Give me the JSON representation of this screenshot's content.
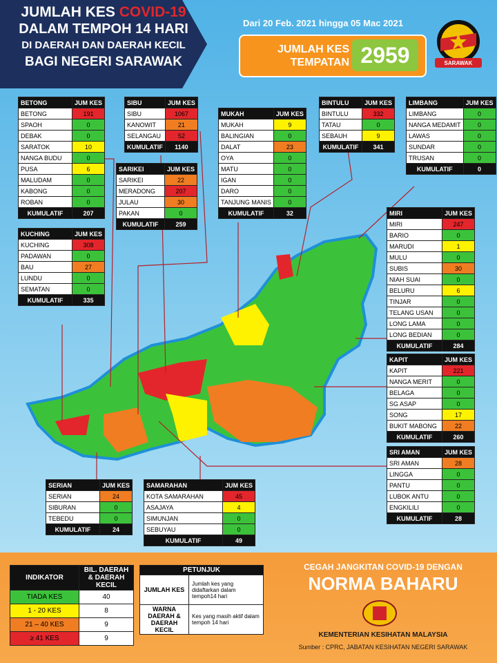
{
  "header": {
    "title_1a": "JUMLAH KES",
    "title_1b": "COVID-19",
    "title_2": "DALAM TEMPOH 14 HARI",
    "title_3": "DI DAERAH DAN DAERAH KECIL",
    "title_4": "BAGI NEGERI SARAWAK",
    "date_range": "Dari 20 Feb. 2021 hingga 05 Mac 2021",
    "total_label": "JUMLAH KES TEMPATAN",
    "total": 2959,
    "badge": "SARAWAK"
  },
  "districts": [
    {
      "name": "BETONG",
      "header": "JUM KES",
      "rows": [
        {
          "name": "BETONG",
          "cases": 191,
          "color": "#e3262b"
        },
        {
          "name": "SPAOH",
          "cases": 0,
          "color": "#3cc23a"
        },
        {
          "name": "DEBAK",
          "cases": 0,
          "color": "#3cc23a"
        },
        {
          "name": "SARATOK",
          "cases": 10,
          "color": "#fff200"
        },
        {
          "name": "NANGA BUDU",
          "cases": 0,
          "color": "#3cc23a"
        },
        {
          "name": "PUSA",
          "cases": 6,
          "color": "#fff200"
        },
        {
          "name": "MALUDAM",
          "cases": 0,
          "color": "#3cc23a"
        },
        {
          "name": "KABONG",
          "cases": 0,
          "color": "#3cc23a"
        },
        {
          "name": "ROBAN",
          "cases": 0,
          "color": "#3cc23a"
        }
      ],
      "total_label": "KUMULATIF",
      "total": 207
    },
    {
      "name": "SIBU",
      "header": "JUM KES",
      "rows": [
        {
          "name": "SIBU",
          "cases": 1067,
          "color": "#e3262b"
        },
        {
          "name": "KANOWIT",
          "cases": 21,
          "color": "#f07d22"
        },
        {
          "name": "SELANGAU",
          "cases": 52,
          "color": "#e3262b"
        }
      ],
      "total_label": "KUMULATIF",
      "total": 1140
    },
    {
      "name": "SARIKEI",
      "header": "JUM KES",
      "rows": [
        {
          "name": "SARIKEI",
          "cases": 22,
          "color": "#f07d22"
        },
        {
          "name": "MERADONG",
          "cases": 207,
          "color": "#e3262b"
        },
        {
          "name": "JULAU",
          "cases": 30,
          "color": "#f07d22"
        },
        {
          "name": "PAKAN",
          "cases": 0,
          "color": "#3cc23a"
        }
      ],
      "total_label": "KUMULATIF",
      "total": 259
    },
    {
      "name": "MUKAH",
      "header": "JUM KES",
      "rows": [
        {
          "name": "MUKAH",
          "cases": 9,
          "color": "#fff200"
        },
        {
          "name": "BALINGIAN",
          "cases": 0,
          "color": "#3cc23a"
        },
        {
          "name": "DALAT",
          "cases": 23,
          "color": "#f07d22"
        },
        {
          "name": "OYA",
          "cases": 0,
          "color": "#3cc23a"
        },
        {
          "name": "MATU",
          "cases": 0,
          "color": "#3cc23a"
        },
        {
          "name": "IGAN",
          "cases": 0,
          "color": "#3cc23a"
        },
        {
          "name": "DARO",
          "cases": 0,
          "color": "#3cc23a"
        },
        {
          "name": "TANJUNG MANIS",
          "cases": 0,
          "color": "#3cc23a"
        }
      ],
      "total_label": "KUMULATIF",
      "total": 32
    },
    {
      "name": "BINTULU",
      "header": "JUM KES",
      "rows": [
        {
          "name": "BINTULU",
          "cases": 332,
          "color": "#e3262b"
        },
        {
          "name": "TATAU",
          "cases": 0,
          "color": "#3cc23a"
        },
        {
          "name": "SEBAUH",
          "cases": 9,
          "color": "#fff200"
        }
      ],
      "total_label": "KUMULATIF",
      "total": 341
    },
    {
      "name": "LIMBANG",
      "header": "JUM KES",
      "rows": [
        {
          "name": "LIMBANG",
          "cases": 0,
          "color": "#3cc23a"
        },
        {
          "name": "NANGA MEDAMIT",
          "cases": 0,
          "color": "#3cc23a"
        },
        {
          "name": "LAWAS",
          "cases": 0,
          "color": "#3cc23a"
        },
        {
          "name": "SUNDAR",
          "cases": 0,
          "color": "#3cc23a"
        },
        {
          "name": "TRUSAN",
          "cases": 0,
          "color": "#3cc23a"
        }
      ],
      "total_label": "KUMULATIF",
      "total": 0
    },
    {
      "name": "KUCHING",
      "header": "JUM KES",
      "rows": [
        {
          "name": "KUCHING",
          "cases": 308,
          "color": "#e3262b"
        },
        {
          "name": "PADAWAN",
          "cases": 0,
          "color": "#3cc23a"
        },
        {
          "name": "BAU",
          "cases": 27,
          "color": "#f07d22"
        },
        {
          "name": "LUNDU",
          "cases": 0,
          "color": "#3cc23a"
        },
        {
          "name": "SEMATAN",
          "cases": 0,
          "color": "#3cc23a"
        }
      ],
      "total_label": "KUMULATIF",
      "total": 335
    },
    {
      "name": "MIRI",
      "header": "JUM KES",
      "rows": [
        {
          "name": "MIRI",
          "cases": 247,
          "color": "#e3262b"
        },
        {
          "name": "BARIO",
          "cases": 0,
          "color": "#3cc23a"
        },
        {
          "name": "MARUDI",
          "cases": 1,
          "color": "#fff200"
        },
        {
          "name": "MULU",
          "cases": 0,
          "color": "#3cc23a"
        },
        {
          "name": "SUBIS",
          "cases": 30,
          "color": "#f07d22"
        },
        {
          "name": "NIAH SUAI",
          "cases": 0,
          "color": "#3cc23a"
        },
        {
          "name": "BELURU",
          "cases": 6,
          "color": "#fff200"
        },
        {
          "name": "TINJAR",
          "cases": 0,
          "color": "#3cc23a"
        },
        {
          "name": "TELANG USAN",
          "cases": 0,
          "color": "#3cc23a"
        },
        {
          "name": "LONG LAMA",
          "cases": 0,
          "color": "#3cc23a"
        },
        {
          "name": "LONG BEDIAN",
          "cases": 0,
          "color": "#3cc23a"
        }
      ],
      "total_label": "KUMULATIF",
      "total": 284
    },
    {
      "name": "KAPIT",
      "header": "JUM KES",
      "rows": [
        {
          "name": "KAPIT",
          "cases": 221,
          "color": "#e3262b"
        },
        {
          "name": "NANGA MERIT",
          "cases": 0,
          "color": "#3cc23a"
        },
        {
          "name": "BELAGA",
          "cases": 0,
          "color": "#3cc23a"
        },
        {
          "name": "SG ASAP",
          "cases": 0,
          "color": "#3cc23a"
        },
        {
          "name": "SONG",
          "cases": 17,
          "color": "#fff200"
        },
        {
          "name": "BUKIT MABONG",
          "cases": 22,
          "color": "#f07d22"
        }
      ],
      "total_label": "KUMULATIF",
      "total": 260
    },
    {
      "name": "SRI AMAN",
      "header": "JUM KES",
      "rows": [
        {
          "name": "SRI AMAN",
          "cases": 28,
          "color": "#f07d22"
        },
        {
          "name": "LINGGA",
          "cases": 0,
          "color": "#3cc23a"
        },
        {
          "name": "PANTU",
          "cases": 0,
          "color": "#3cc23a"
        },
        {
          "name": "LUBOK ANTU",
          "cases": 0,
          "color": "#3cc23a"
        },
        {
          "name": "ENGKILILI",
          "cases": 0,
          "color": "#3cc23a"
        }
      ],
      "total_label": "KUMULATIF",
      "total": 28
    },
    {
      "name": "SERIAN",
      "header": "JUM KES",
      "rows": [
        {
          "name": "SERIAN",
          "cases": 24,
          "color": "#f07d22"
        },
        {
          "name": "SIBURAN",
          "cases": 0,
          "color": "#3cc23a"
        },
        {
          "name": "TEBEDU",
          "cases": 0,
          "color": "#3cc23a"
        }
      ],
      "total_label": "KUMULATIF",
      "total": 24
    },
    {
      "name": "SAMARAHAN",
      "header": "JUM KES",
      "rows": [
        {
          "name": "KOTA SAMARAHAN",
          "cases": 45,
          "color": "#e3262b"
        },
        {
          "name": "ASAJAYA",
          "cases": 4,
          "color": "#fff200"
        },
        {
          "name": "SIMUNJAN",
          "cases": 0,
          "color": "#3cc23a"
        },
        {
          "name": "SEBUYAU",
          "cases": 0,
          "color": "#3cc23a"
        }
      ],
      "total_label": "KUMULATIF",
      "total": 49
    }
  ],
  "indicator": {
    "header_1": "INDIKATOR",
    "header_2": "BIL. DAERAH & DAERAH KECIL",
    "rows": [
      {
        "label": "TIADA KES",
        "count": 40,
        "color": "#3cc23a"
      },
      {
        "label": "1 - 20 KES",
        "count": 8,
        "color": "#fff200"
      },
      {
        "label": "21 – 40 KES",
        "count": 9,
        "color": "#f07d22"
      },
      {
        "label": "≥ 41 KES",
        "count": 9,
        "color": "#e3262b"
      }
    ]
  },
  "guide": {
    "title": "PETUNJUK",
    "rows": [
      {
        "term": "JUMLAH KES",
        "text": "Jumlah kes yang didaftarkan dalam tempoh14 hari"
      },
      {
        "term": "WARNA DAERAH & DAERAH KECIL",
        "text": "Kes yang masih aktif dalam tempoh 14 hari"
      }
    ]
  },
  "footer": {
    "slogan": "CEGAH JANGKITAN COVID-19 DENGAN",
    "campaign": "NORMA BAHARU",
    "ministry": "KEMENTERIAN KESIHATAN MALAYSIA",
    "source": "Sumber : CPRC, JABATAN KESIHATAN NEGERI SARAWAK"
  }
}
